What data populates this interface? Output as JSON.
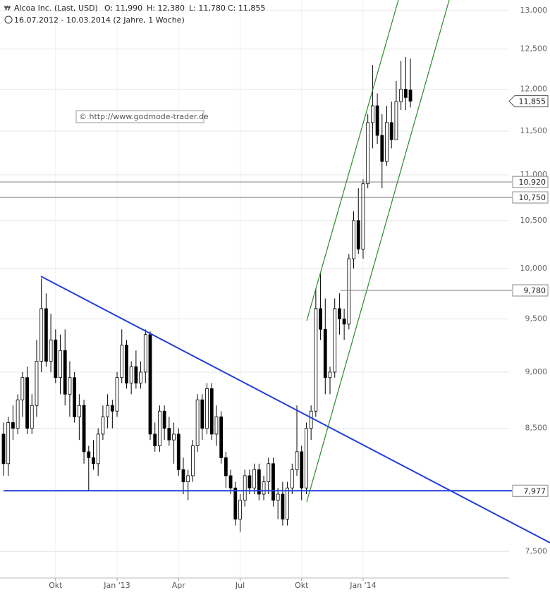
{
  "chart_data": {
    "type": "candlestick",
    "title": "Alcoa Inc. (Last, USD)",
    "summary": [
      "O: 11,990",
      "H: 12,380",
      "L: 11,780",
      "C: 11,855"
    ],
    "subtitle": "16.07.2012 - 10.03.2014 (2 Jahre, 1 Woche)",
    "watermark": "© http://www.godmode-trader.de",
    "log_scale": true,
    "grid": true,
    "ylim": [
      7.3,
      13.14
    ],
    "yticks": [
      {
        "value": 7.5,
        "label": "7,500"
      },
      {
        "value": 8.5,
        "label": "8,500"
      },
      {
        "value": 9,
        "label": "9,000"
      },
      {
        "value": 9.5,
        "label": "9,500"
      },
      {
        "value": 10,
        "label": "10,000"
      },
      {
        "value": 10.5,
        "label": "10,500"
      },
      {
        "value": 11,
        "label": "11,000"
      },
      {
        "value": 11.5,
        "label": "11,500"
      },
      {
        "value": 12,
        "label": "12,000"
      },
      {
        "value": 12.5,
        "label": "12,500"
      },
      {
        "value": 13,
        "label": "13,000"
      }
    ],
    "categories": [
      null,
      null,
      null,
      null,
      null,
      null,
      null,
      null,
      null,
      null,
      null,
      "Okt",
      null,
      null,
      null,
      null,
      null,
      null,
      null,
      null,
      null,
      null,
      null,
      null,
      "Jan '13",
      null,
      null,
      null,
      null,
      null,
      null,
      null,
      null,
      null,
      null,
      null,
      null,
      "Apr",
      null,
      null,
      null,
      null,
      null,
      null,
      null,
      null,
      null,
      null,
      null,
      null,
      "Jul",
      null,
      null,
      null,
      null,
      null,
      null,
      null,
      null,
      null,
      null,
      null,
      null,
      "Okt",
      null,
      null,
      null,
      null,
      null,
      null,
      null,
      null,
      null,
      null,
      null,
      null,
      "Jan '14",
      null,
      null,
      null,
      null,
      null,
      null,
      null,
      null,
      null,
      null
    ],
    "open": [
      8.45,
      8.2,
      8.55,
      8.5,
      8.75,
      8.95,
      8.5,
      8.7,
      9.1,
      9.6,
      9.1,
      9.3,
      8.95,
      9.2,
      8.8,
      8.95,
      8.6,
      8.7,
      8.3,
      8.25,
      8.2,
      8.45,
      8.6,
      8.7,
      8.65,
      8.95,
      9.25,
      8.9,
      9.05,
      8.9,
      9,
      9.35,
      8.45,
      8.35,
      8.65,
      8.5,
      8.4,
      8.45,
      8.15,
      8.05,
      8.1,
      8.35,
      8.75,
      8.5,
      8.85,
      8.45,
      8.6,
      8.25,
      8.1,
      8,
      7.75,
      7.9,
      8.1,
      8,
      8.15,
      7.95,
      8.05,
      8.2,
      7.9,
      7.95,
      7.75,
      8,
      8.15,
      8.3,
      8,
      8.5,
      8.65,
      9.6,
      9.4,
      8.95,
      9,
      9.6,
      9.5,
      9.45,
      10.1,
      10.5,
      10.2,
      10.9,
      11.6,
      11.8,
      11.45,
      11.15,
      11.6,
      11.4,
      11.85,
      12,
      11.99
    ],
    "high": [
      8.55,
      8.6,
      8.7,
      8.8,
      9,
      9.05,
      8.8,
      9.3,
      9.9,
      9.75,
      9.55,
      9.4,
      9.35,
      9.4,
      9.1,
      9,
      8.8,
      8.75,
      8.35,
      8.4,
      8.5,
      8.7,
      8.8,
      8.75,
      9,
      9.4,
      9.3,
      9.1,
      9.2,
      9.1,
      9.4,
      9.38,
      8.55,
      8.7,
      8.7,
      8.6,
      8.55,
      8.5,
      8.25,
      8.15,
      8.4,
      8.8,
      8.8,
      8.9,
      8.9,
      8.7,
      8.65,
      8.3,
      8.15,
      8.05,
      7.95,
      8.15,
      8.15,
      8.2,
      8.2,
      8.1,
      8.25,
      8.25,
      8,
      8.05,
      8.05,
      8.2,
      8.7,
      8.35,
      8.55,
      8.7,
      9.8,
      9.95,
      9.7,
      9.05,
      9.7,
      9.75,
      9.6,
      10.15,
      10.6,
      10.85,
      10.95,
      11.7,
      12.3,
      11.95,
      11.7,
      11.8,
      11.85,
      12.1,
      12.35,
      12.4,
      12.38
    ],
    "low": [
      8.1,
      8.1,
      8.4,
      8.45,
      8.6,
      8.45,
      8.45,
      8.6,
      9,
      9.05,
      9,
      8.9,
      8.8,
      8.7,
      8.6,
      8.55,
      8.4,
      8.2,
      7.98,
      8.15,
      8.1,
      8.4,
      8.5,
      8.5,
      8.6,
      8.9,
      8.85,
      8.8,
      8.85,
      8.85,
      8.9,
      8.4,
      8.3,
      8.3,
      8.4,
      8.35,
      8.2,
      8.1,
      7.95,
      7.9,
      8.05,
      8.3,
      8.4,
      8.45,
      8.4,
      8.35,
      8.2,
      8,
      7.95,
      7.7,
      7.65,
      7.85,
      7.95,
      7.95,
      7.9,
      7.9,
      7.95,
      7.85,
      7.75,
      7.7,
      7.7,
      7.95,
      8.1,
      7.9,
      7.95,
      8.4,
      8.6,
      9.3,
      8.8,
      8.8,
      8.95,
      9.35,
      9.3,
      9.4,
      10,
      10.15,
      10.1,
      10.85,
      11.3,
      11.35,
      10.85,
      11.1,
      11.3,
      11.4,
      11.75,
      11.75,
      11.78
    ],
    "close": [
      8.2,
      8.55,
      8.5,
      8.75,
      8.95,
      8.5,
      8.7,
      9.1,
      9.6,
      9.1,
      9.3,
      8.95,
      9.2,
      8.8,
      8.95,
      8.6,
      8.7,
      8.3,
      8.25,
      8.2,
      8.45,
      8.6,
      8.7,
      8.65,
      8.95,
      9.25,
      8.9,
      9.05,
      8.9,
      9,
      9.35,
      8.45,
      8.35,
      8.65,
      8.5,
      8.4,
      8.45,
      8.15,
      8.05,
      8.1,
      8.35,
      8.75,
      8.5,
      8.85,
      8.45,
      8.6,
      8.25,
      8.1,
      8,
      7.75,
      7.9,
      8.1,
      8,
      8.15,
      7.95,
      8.05,
      8.2,
      7.9,
      7.95,
      7.75,
      8,
      8.15,
      8.3,
      8,
      8.5,
      8.65,
      9.6,
      9.4,
      8.95,
      9,
      9.6,
      9.5,
      9.45,
      10.1,
      10.5,
      10.2,
      10.9,
      11.6,
      11.8,
      11.45,
      11.15,
      11.6,
      11.4,
      11.85,
      12,
      11.9,
      11.855
    ],
    "levels": [
      {
        "value": 10.92,
        "label": "10,920",
        "color": "#777777"
      },
      {
        "value": 10.75,
        "label": "10,750",
        "color": "#777777"
      },
      {
        "value": 9.78,
        "label": "9,780",
        "color": "#777777"
      },
      {
        "value": 7.977,
        "label": "7,977",
        "color": "#1f3fd8"
      }
    ],
    "last_price": {
      "value": 11.855,
      "label": "11,855"
    }
  }
}
